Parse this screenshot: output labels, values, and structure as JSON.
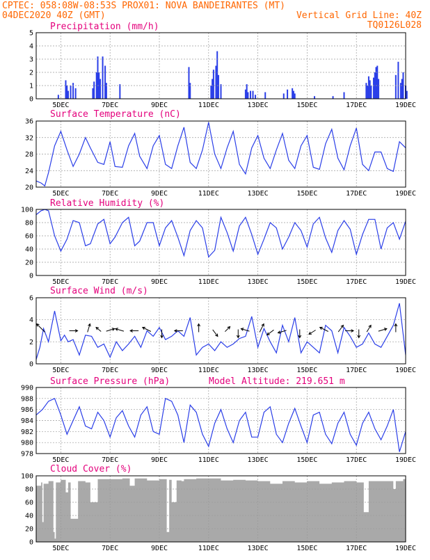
{
  "header": {
    "line1_left": "CPTEC:  058:08W-08:53S  PROX01: NOVA BANDEIRANTES (MT)",
    "line2_left": "04DEC2020 40Z (GMT)",
    "line2_right": "Vertical Grid Line: 40Z",
    "line3_right": "TQ0126L028"
  },
  "panels": {
    "precip": {
      "title": "Precipitation (mm/h)"
    },
    "temp": {
      "title": "Surface Temperature (nC)"
    },
    "rh": {
      "title": "Relative Humidity (%)"
    },
    "wind": {
      "title": "Surface Wind (m/s)"
    },
    "pres": {
      "title": "Surface Pressure (hPa)",
      "extra": "Model Altitude: 219.651 m"
    },
    "cloud": {
      "title": "Cloud Cover (%)"
    }
  },
  "chart_data": [
    {
      "type": "bar",
      "id": "precip",
      "title": "Precipitation (mm/h)",
      "x": [
        4.9,
        5.2,
        5.25,
        5.3,
        5.4,
        5.5,
        5.6,
        6.3,
        6.35,
        6.45,
        6.5,
        6.55,
        6.6,
        6.7,
        6.8,
        6.85,
        7.4,
        10.2,
        10.25,
        11.1,
        11.15,
        11.2,
        11.3,
        11.35,
        11.4,
        11.5,
        12.5,
        12.55,
        12.6,
        12.7,
        12.8,
        12.9,
        13.3,
        14.05,
        14.2,
        14.4,
        14.45,
        14.5,
        15.3,
        16.05,
        16.5,
        17.4,
        17.45,
        17.5,
        17.55,
        17.6,
        17.7,
        17.75,
        17.8,
        17.85,
        17.9,
        18.6,
        18.7,
        18.8,
        18.85,
        18.9,
        19.0,
        19.05
      ],
      "values": [
        0.3,
        1.4,
        1.0,
        0.6,
        1.0,
        1.2,
        0.8,
        0.8,
        1.3,
        2.0,
        3.2,
        2.0,
        1.5,
        3.2,
        2.5,
        1.2,
        1.1,
        2.4,
        1.2,
        1.0,
        1.5,
        2.2,
        2.5,
        3.6,
        1.8,
        1.1,
        0.7,
        1.1,
        0.5,
        0.6,
        0.6,
        0.3,
        0.5,
        0.4,
        0.7,
        0.8,
        0.6,
        0.4,
        0.2,
        0.2,
        0.5,
        1.2,
        1.0,
        1.7,
        1.4,
        1.0,
        1.6,
        2.0,
        2.4,
        2.5,
        1.5,
        1.8,
        2.8,
        1.2,
        1.5,
        2.0,
        1.0,
        0.6
      ],
      "ylim": [
        0,
        5
      ],
      "yticks": [
        0,
        1,
        2,
        3,
        4,
        5
      ]
    },
    {
      "type": "line",
      "id": "temp",
      "title": "Surface Temperature (nC)",
      "x": [
        4.0,
        4.2,
        4.35,
        4.5,
        4.75,
        5.0,
        5.25,
        5.5,
        5.75,
        6.0,
        6.2,
        6.5,
        6.75,
        7.0,
        7.2,
        7.5,
        7.75,
        8.0,
        8.2,
        8.5,
        8.75,
        9.0,
        9.25,
        9.5,
        9.75,
        10.0,
        10.25,
        10.5,
        10.75,
        11.0,
        11.25,
        11.5,
        11.75,
        12.0,
        12.25,
        12.5,
        12.75,
        13.0,
        13.25,
        13.5,
        13.75,
        14.0,
        14.25,
        14.5,
        14.75,
        15.0,
        15.25,
        15.5,
        15.75,
        16.0,
        16.25,
        16.5,
        16.75,
        17.0,
        17.25,
        17.5,
        17.75,
        18.0,
        18.25,
        18.5,
        18.75,
        19.0
      ],
      "values": [
        21.5,
        21.0,
        20.3,
        23.5,
        30.0,
        33.5,
        29.0,
        25.0,
        28.0,
        32.0,
        29.5,
        26.0,
        25.5,
        31.0,
        25.0,
        24.8,
        30.0,
        33.0,
        27.5,
        24.5,
        30.0,
        32.5,
        25.5,
        24.5,
        30.0,
        34.5,
        26.0,
        24.5,
        29.0,
        35.7,
        28.0,
        24.5,
        29.5,
        33.5,
        25.5,
        23.2,
        29.5,
        32.5,
        27.0,
        24.5,
        29.0,
        33.0,
        26.5,
        24.5,
        30.0,
        32.5,
        24.8,
        24.3,
        30.5,
        34.0,
        27.0,
        24.2,
        30.0,
        34.3,
        25.5,
        24.0,
        28.5,
        28.5,
        24.5,
        23.8,
        31.0,
        29.5
      ],
      "ylim": [
        20,
        36
      ],
      "yticks": [
        20,
        24,
        28,
        32,
        36
      ]
    },
    {
      "type": "line",
      "id": "rh",
      "title": "Relative Humidity (%)",
      "x": [
        4.0,
        4.2,
        4.35,
        4.5,
        4.75,
        5.0,
        5.25,
        5.5,
        5.75,
        6.0,
        6.2,
        6.5,
        6.75,
        7.0,
        7.2,
        7.5,
        7.75,
        8.0,
        8.2,
        8.5,
        8.75,
        9.0,
        9.25,
        9.5,
        9.75,
        10.0,
        10.25,
        10.5,
        10.75,
        11.0,
        11.25,
        11.5,
        11.75,
        12.0,
        12.25,
        12.5,
        12.75,
        13.0,
        13.25,
        13.5,
        13.75,
        14.0,
        14.25,
        14.5,
        14.75,
        15.0,
        15.25,
        15.5,
        15.75,
        16.0,
        16.25,
        16.5,
        16.75,
        17.0,
        17.25,
        17.5,
        17.75,
        18.0,
        18.25,
        18.5,
        18.75,
        19.0
      ],
      "values": [
        92,
        98,
        100,
        98,
        60,
        37,
        55,
        83,
        80,
        45,
        48,
        78,
        85,
        48,
        58,
        80,
        88,
        45,
        52,
        80,
        80,
        45,
        72,
        83,
        58,
        30,
        68,
        83,
        72,
        28,
        38,
        88,
        65,
        37,
        75,
        88,
        62,
        32,
        55,
        80,
        72,
        40,
        58,
        80,
        68,
        43,
        78,
        88,
        57,
        35,
        68,
        83,
        70,
        32,
        62,
        85,
        85,
        40,
        72,
        80,
        55,
        82
      ],
      "ylim": [
        0,
        100
      ],
      "yticks": [
        0,
        20,
        40,
        60,
        80,
        100
      ]
    },
    {
      "type": "line",
      "id": "wind",
      "title": "Surface Wind (m/s)",
      "x": [
        4.0,
        4.15,
        4.3,
        4.5,
        4.75,
        5.0,
        5.15,
        5.3,
        5.5,
        5.75,
        6.0,
        6.25,
        6.5,
        6.75,
        7.0,
        7.25,
        7.5,
        7.75,
        8.0,
        8.25,
        8.5,
        8.75,
        9.0,
        9.25,
        9.5,
        9.75,
        10.0,
        10.25,
        10.5,
        10.75,
        11.0,
        11.25,
        11.5,
        11.75,
        12.0,
        12.25,
        12.5,
        12.75,
        13.0,
        13.25,
        13.5,
        13.75,
        14.0,
        14.25,
        14.5,
        14.75,
        15.0,
        15.25,
        15.5,
        15.75,
        16.0,
        16.25,
        16.5,
        16.75,
        17.0,
        17.25,
        17.5,
        17.75,
        18.0,
        18.25,
        18.5,
        18.75,
        19.0
      ],
      "values": [
        0.4,
        1.5,
        3.2,
        2.0,
        4.8,
        2.1,
        2.6,
        2.0,
        2.2,
        0.8,
        2.6,
        2.5,
        1.5,
        1.8,
        0.6,
        2.0,
        1.2,
        1.8,
        2.5,
        1.5,
        3.0,
        2.5,
        3.3,
        2.2,
        2.5,
        3.0,
        2.5,
        4.2,
        0.8,
        1.5,
        1.8,
        1.2,
        2.0,
        1.5,
        1.8,
        2.3,
        2.5,
        4.3,
        1.5,
        3.2,
        2.0,
        1.0,
        3.5,
        2.0,
        4.2,
        1.0,
        2.0,
        1.5,
        1.0,
        3.5,
        3.0,
        1.0,
        3.3,
        2.5,
        1.5,
        1.8,
        2.8,
        1.8,
        1.5,
        2.5,
        3.5,
        5.5,
        0.8
      ],
      "ylim": [
        0,
        6
      ],
      "yticks": [
        0,
        2,
        4,
        6
      ],
      "vectors": [
        [
          4.3,
          -1.0,
          1.0
        ],
        [
          5.4,
          1.0,
          0.0
        ],
        [
          6.1,
          0.3,
          1.0
        ],
        [
          6.6,
          -0.6,
          0.5
        ],
        [
          6.9,
          1.0,
          0.3
        ],
        [
          7.5,
          -1.0,
          0.3
        ],
        [
          8.1,
          -1.0,
          0.0
        ],
        [
          8.6,
          -1.0,
          0.5
        ],
        [
          9.1,
          0.0,
          -1.0
        ],
        [
          9.9,
          -1.0,
          0.0
        ],
        [
          10.6,
          0.0,
          1.0
        ],
        [
          11.2,
          0.6,
          -0.8
        ],
        [
          11.7,
          0.6,
          0.6
        ],
        [
          12.2,
          0.0,
          -1.0
        ],
        [
          12.6,
          -1.0,
          0.3
        ],
        [
          13.1,
          0.5,
          1.0
        ],
        [
          13.6,
          -0.8,
          -0.6
        ],
        [
          14.1,
          -1.0,
          -0.3
        ],
        [
          14.7,
          0.0,
          -1.0
        ],
        [
          15.3,
          -0.8,
          -0.5
        ],
        [
          15.8,
          -1.0,
          0.5
        ],
        [
          16.3,
          0.6,
          0.8
        ],
        [
          16.6,
          1.0,
          0.0
        ],
        [
          17.1,
          0.0,
          -1.0
        ],
        [
          17.45,
          0.5,
          0.8
        ],
        [
          17.95,
          1.0,
          0.3
        ],
        [
          18.6,
          0.0,
          1.0
        ]
      ]
    },
    {
      "type": "line",
      "id": "pres",
      "title": "Surface Pressure (hPa)",
      "x": [
        4.0,
        4.25,
        4.5,
        4.75,
        5.0,
        5.25,
        5.5,
        5.75,
        6.0,
        6.25,
        6.5,
        6.75,
        7.0,
        7.25,
        7.5,
        7.75,
        8.0,
        8.25,
        8.5,
        8.75,
        9.0,
        9.25,
        9.5,
        9.75,
        10.0,
        10.25,
        10.5,
        10.75,
        11.0,
        11.25,
        11.5,
        11.75,
        12.0,
        12.25,
        12.5,
        12.75,
        13.0,
        13.25,
        13.5,
        13.75,
        14.0,
        14.25,
        14.5,
        14.75,
        15.0,
        15.25,
        15.5,
        15.75,
        16.0,
        16.25,
        16.5,
        16.75,
        17.0,
        17.25,
        17.5,
        17.75,
        18.0,
        18.25,
        18.5,
        18.75,
        19.0
      ],
      "values": [
        985.0,
        986.0,
        987.5,
        988.0,
        985.0,
        981.5,
        984.0,
        986.5,
        983.0,
        982.5,
        985.5,
        984.0,
        981.0,
        984.5,
        985.8,
        983.0,
        981.0,
        985.0,
        986.5,
        982.0,
        981.5,
        988.0,
        987.5,
        985.0,
        980.0,
        986.8,
        985.5,
        981.5,
        979.3,
        983.5,
        986.0,
        982.5,
        980.0,
        984.0,
        985.5,
        981.0,
        981.0,
        985.5,
        986.5,
        981.5,
        980.0,
        983.5,
        986.2,
        983.0,
        980.0,
        985.0,
        985.5,
        981.5,
        979.8,
        983.5,
        985.5,
        981.5,
        979.5,
        983.5,
        985.5,
        982.5,
        980.5,
        983.0,
        986.0,
        978.3,
        982.0
      ],
      "ylim": [
        978,
        990
      ],
      "yticks": [
        978,
        980,
        982,
        984,
        986,
        988,
        990
      ]
    },
    {
      "type": "area",
      "id": "cloud",
      "title": "Cloud Cover (%)",
      "x": [
        4.0,
        4.2,
        4.25,
        4.3,
        4.5,
        4.7,
        4.75,
        4.8,
        5.0,
        5.2,
        5.3,
        5.4,
        5.7,
        6.0,
        6.2,
        6.5,
        7.0,
        7.5,
        7.8,
        8.0,
        8.5,
        9.0,
        9.3,
        9.4,
        9.5,
        9.7,
        9.9,
        10.0,
        10.5,
        11.0,
        11.5,
        12.0,
        12.5,
        13.0,
        13.5,
        14.0,
        14.5,
        15.0,
        15.5,
        16.0,
        16.5,
        17.0,
        17.3,
        17.5,
        18.0,
        18.5,
        18.6,
        18.9,
        19.0
      ],
      "values": [
        85,
        90,
        30,
        88,
        92,
        15,
        5,
        90,
        94,
        75,
        90,
        35,
        92,
        90,
        60,
        95,
        95,
        96,
        85,
        96,
        93,
        95,
        15,
        94,
        60,
        93,
        92,
        95,
        96,
        96,
        93,
        94,
        93,
        92,
        88,
        92,
        90,
        92,
        88,
        90,
        92,
        90,
        45,
        92,
        92,
        80,
        92,
        95,
        90
      ],
      "ylim": [
        0,
        100
      ],
      "yticks": [
        0,
        20,
        40,
        60,
        80,
        100
      ]
    }
  ],
  "x_axis": {
    "range": [
      4.0,
      19.0
    ],
    "ticks": [
      5,
      7,
      9,
      11,
      13,
      15,
      17,
      19
    ],
    "labels": [
      "5DEC",
      "7DEC",
      "9DEC",
      "11DEC",
      "13DEC",
      "15DEC",
      "17DEC",
      "19DEC"
    ]
  },
  "colors": {
    "series": "#2a3ee8",
    "cloud": "#a9a9a9",
    "title": "#e4007c",
    "header": "#ff6600"
  }
}
